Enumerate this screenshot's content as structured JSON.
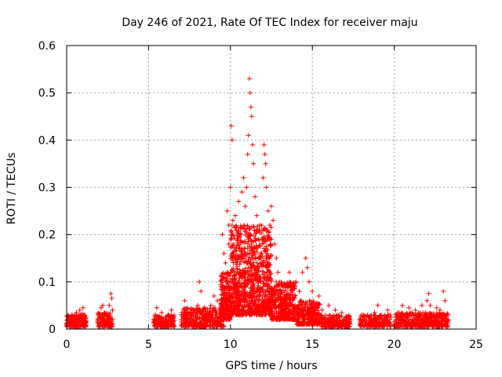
{
  "chart_data": {
    "type": "scatter",
    "title": "Day 246 of 2021, Rate Of TEC Index for receiver maju",
    "xlabel": "GPS time / hours",
    "ylabel": "ROTI / TECUs",
    "xlim": [
      0,
      25
    ],
    "ylim": [
      0,
      0.6
    ],
    "x_ticks": [
      0,
      5,
      10,
      15,
      20,
      25
    ],
    "x_tick_labels": [
      "0",
      "5",
      "10",
      "15",
      "20",
      "25"
    ],
    "y_ticks": [
      0,
      0.1,
      0.2,
      0.3,
      0.4,
      0.5,
      0.6
    ],
    "y_tick_labels": [
      "0",
      "0.1",
      "0.2",
      "0.3",
      "0.4",
      "0.5",
      "0.6"
    ],
    "grid": true,
    "marker": "+",
    "color": "#ff0000",
    "series": [
      {
        "name": "ROTI",
        "points": [
          [
            0.1,
            0.02
          ],
          [
            0.2,
            0.015
          ],
          [
            0.3,
            0.03
          ],
          [
            0.4,
            0.012
          ],
          [
            0.5,
            0.025
          ],
          [
            0.6,
            0.035
          ],
          [
            0.7,
            0.018
          ],
          [
            0.8,
            0.04
          ],
          [
            0.9,
            0.022
          ],
          [
            1.0,
            0.045
          ],
          [
            1.1,
            0.03
          ],
          [
            1.2,
            0.015
          ],
          [
            0.15,
            0.01
          ],
          [
            0.35,
            0.02
          ],
          [
            0.55,
            0.012
          ],
          [
            0.75,
            0.028
          ],
          [
            0.95,
            0.033
          ],
          [
            1.05,
            0.02
          ],
          [
            1.9,
            0.015
          ],
          [
            2.0,
            0.03
          ],
          [
            2.1,
            0.045
          ],
          [
            2.2,
            0.02
          ],
          [
            2.3,
            0.035
          ],
          [
            2.4,
            0.012
          ],
          [
            2.5,
            0.028
          ],
          [
            2.6,
            0.05
          ],
          [
            2.7,
            0.075
          ],
          [
            2.75,
            0.065
          ],
          [
            2.8,
            0.04
          ],
          [
            2.2,
            0.05
          ],
          [
            2.45,
            0.018
          ],
          [
            2.65,
            0.03
          ],
          [
            5.3,
            0.015
          ],
          [
            5.4,
            0.03
          ],
          [
            5.5,
            0.045
          ],
          [
            5.6,
            0.02
          ],
          [
            5.8,
            0.035
          ],
          [
            6.0,
            0.012
          ],
          [
            6.2,
            0.028
          ],
          [
            6.4,
            0.04
          ],
          [
            6.5,
            0.018
          ],
          [
            5.7,
            0.025
          ],
          [
            6.1,
            0.02
          ],
          [
            7.0,
            0.02
          ],
          [
            7.2,
            0.06
          ],
          [
            7.4,
            0.03
          ],
          [
            7.6,
            0.015
          ],
          [
            7.8,
            0.04
          ],
          [
            8.0,
            0.05
          ],
          [
            8.1,
            0.1
          ],
          [
            8.2,
            0.08
          ],
          [
            8.3,
            0.03
          ],
          [
            8.4,
            0.045
          ],
          [
            8.6,
            0.035
          ],
          [
            8.8,
            0.05
          ],
          [
            9.0,
            0.07
          ],
          [
            9.2,
            0.06
          ],
          [
            9.4,
            0.045
          ],
          [
            9.6,
            0.035
          ],
          [
            9.8,
            0.12
          ],
          [
            9.9,
            0.18
          ],
          [
            9.5,
            0.2
          ],
          [
            9.6,
            0.16
          ],
          [
            9.7,
            0.14
          ],
          [
            9.8,
            0.25
          ],
          [
            9.9,
            0.22
          ],
          [
            10.0,
            0.3
          ],
          [
            10.05,
            0.43
          ],
          [
            10.1,
            0.4
          ],
          [
            10.15,
            0.23
          ],
          [
            10.2,
            0.18
          ],
          [
            10.3,
            0.24
          ],
          [
            10.4,
            0.15
          ],
          [
            10.5,
            0.27
          ],
          [
            10.6,
            0.2
          ],
          [
            10.7,
            0.29
          ],
          [
            10.8,
            0.32
          ],
          [
            10.9,
            0.26
          ],
          [
            11.0,
            0.3
          ],
          [
            11.05,
            0.37
          ],
          [
            11.1,
            0.41
          ],
          [
            11.15,
            0.53
          ],
          [
            11.2,
            0.5
          ],
          [
            11.25,
            0.47
          ],
          [
            11.3,
            0.45
          ],
          [
            11.35,
            0.39
          ],
          [
            11.4,
            0.35
          ],
          [
            11.5,
            0.28
          ],
          [
            11.6,
            0.24
          ],
          [
            11.7,
            0.19
          ],
          [
            11.8,
            0.22
          ],
          [
            11.9,
            0.16
          ],
          [
            12.0,
            0.32
          ],
          [
            12.05,
            0.39
          ],
          [
            12.1,
            0.37
          ],
          [
            12.15,
            0.35
          ],
          [
            12.2,
            0.3
          ],
          [
            12.3,
            0.25
          ],
          [
            12.4,
            0.22
          ],
          [
            12.5,
            0.26
          ],
          [
            12.6,
            0.23
          ],
          [
            12.7,
            0.18
          ],
          [
            12.8,
            0.15
          ],
          [
            12.9,
            0.12
          ],
          [
            13.0,
            0.1
          ],
          [
            13.2,
            0.09
          ],
          [
            13.4,
            0.08
          ],
          [
            13.6,
            0.12
          ],
          [
            13.8,
            0.09
          ],
          [
            14.0,
            0.1
          ],
          [
            14.2,
            0.08
          ],
          [
            14.4,
            0.12
          ],
          [
            14.6,
            0.15
          ],
          [
            14.7,
            0.13
          ],
          [
            14.8,
            0.1
          ],
          [
            15.0,
            0.08
          ],
          [
            15.2,
            0.05
          ],
          [
            15.4,
            0.07
          ],
          [
            15.6,
            0.04
          ],
          [
            16.0,
            0.05
          ],
          [
            16.4,
            0.04
          ],
          [
            16.8,
            0.035
          ],
          [
            10.2,
            0.1
          ],
          [
            10.4,
            0.08
          ],
          [
            10.6,
            0.12
          ],
          [
            10.8,
            0.06
          ],
          [
            11.0,
            0.14
          ],
          [
            11.2,
            0.1
          ],
          [
            11.4,
            0.16
          ],
          [
            11.6,
            0.07
          ],
          [
            11.8,
            0.11
          ],
          [
            12.0,
            0.09
          ],
          [
            12.2,
            0.13
          ],
          [
            12.4,
            0.08
          ],
          [
            12.6,
            0.06
          ],
          [
            12.8,
            0.1
          ],
          [
            13.0,
            0.05
          ],
          [
            10.3,
            0.05
          ],
          [
            10.7,
            0.04
          ],
          [
            11.3,
            0.06
          ],
          [
            11.7,
            0.05
          ],
          [
            12.3,
            0.04
          ],
          [
            12.9,
            0.03
          ],
          [
            14.5,
            0.03
          ],
          [
            15.0,
            0.025
          ],
          [
            15.5,
            0.03
          ],
          [
            16.0,
            0.02
          ],
          [
            16.5,
            0.03
          ],
          [
            17.0,
            0.02
          ],
          [
            17.2,
            0.015
          ],
          [
            17.9,
            0.02
          ],
          [
            18.0,
            0.03
          ],
          [
            18.2,
            0.015
          ],
          [
            18.4,
            0.025
          ],
          [
            18.6,
            0.02
          ],
          [
            18.8,
            0.035
          ],
          [
            19.0,
            0.05
          ],
          [
            19.2,
            0.03
          ],
          [
            19.4,
            0.02
          ],
          [
            19.6,
            0.04
          ],
          [
            19.8,
            0.025
          ],
          [
            19.3,
            0.015
          ],
          [
            20.1,
            0.02
          ],
          [
            20.3,
            0.035
          ],
          [
            20.5,
            0.05
          ],
          [
            20.7,
            0.03
          ],
          [
            20.9,
            0.045
          ],
          [
            21.1,
            0.02
          ],
          [
            21.3,
            0.04
          ],
          [
            21.5,
            0.03
          ],
          [
            21.7,
            0.05
          ],
          [
            21.9,
            0.035
          ],
          [
            22.0,
            0.06
          ],
          [
            22.1,
            0.075
          ],
          [
            22.2,
            0.05
          ],
          [
            22.4,
            0.03
          ],
          [
            22.6,
            0.045
          ],
          [
            22.8,
            0.04
          ],
          [
            23.0,
            0.08
          ],
          [
            23.1,
            0.06
          ],
          [
            23.2,
            0.03
          ],
          [
            23.3,
            0.02
          ]
        ]
      }
    ],
    "bands": [
      {
        "x0": 0.0,
        "x1": 1.2,
        "lo": 0.005,
        "hi": 0.03,
        "n": 180
      },
      {
        "x0": 1.9,
        "x1": 2.8,
        "lo": 0.005,
        "hi": 0.035,
        "n": 130
      },
      {
        "x0": 5.3,
        "x1": 6.6,
        "lo": 0.005,
        "hi": 0.03,
        "n": 160
      },
      {
        "x0": 7.0,
        "x1": 9.6,
        "lo": 0.005,
        "hi": 0.045,
        "n": 380
      },
      {
        "x0": 9.4,
        "x1": 10.0,
        "lo": 0.02,
        "hi": 0.12,
        "n": 220
      },
      {
        "x0": 10.0,
        "x1": 12.5,
        "lo": 0.03,
        "hi": 0.22,
        "n": 900
      },
      {
        "x0": 12.5,
        "x1": 14.0,
        "lo": 0.02,
        "hi": 0.1,
        "n": 350
      },
      {
        "x0": 14.0,
        "x1": 15.5,
        "lo": 0.01,
        "hi": 0.06,
        "n": 260
      },
      {
        "x0": 15.5,
        "x1": 17.3,
        "lo": 0.005,
        "hi": 0.03,
        "n": 220
      },
      {
        "x0": 17.9,
        "x1": 19.8,
        "lo": 0.005,
        "hi": 0.03,
        "n": 200
      },
      {
        "x0": 20.0,
        "x1": 23.3,
        "lo": 0.005,
        "hi": 0.035,
        "n": 420
      }
    ]
  }
}
